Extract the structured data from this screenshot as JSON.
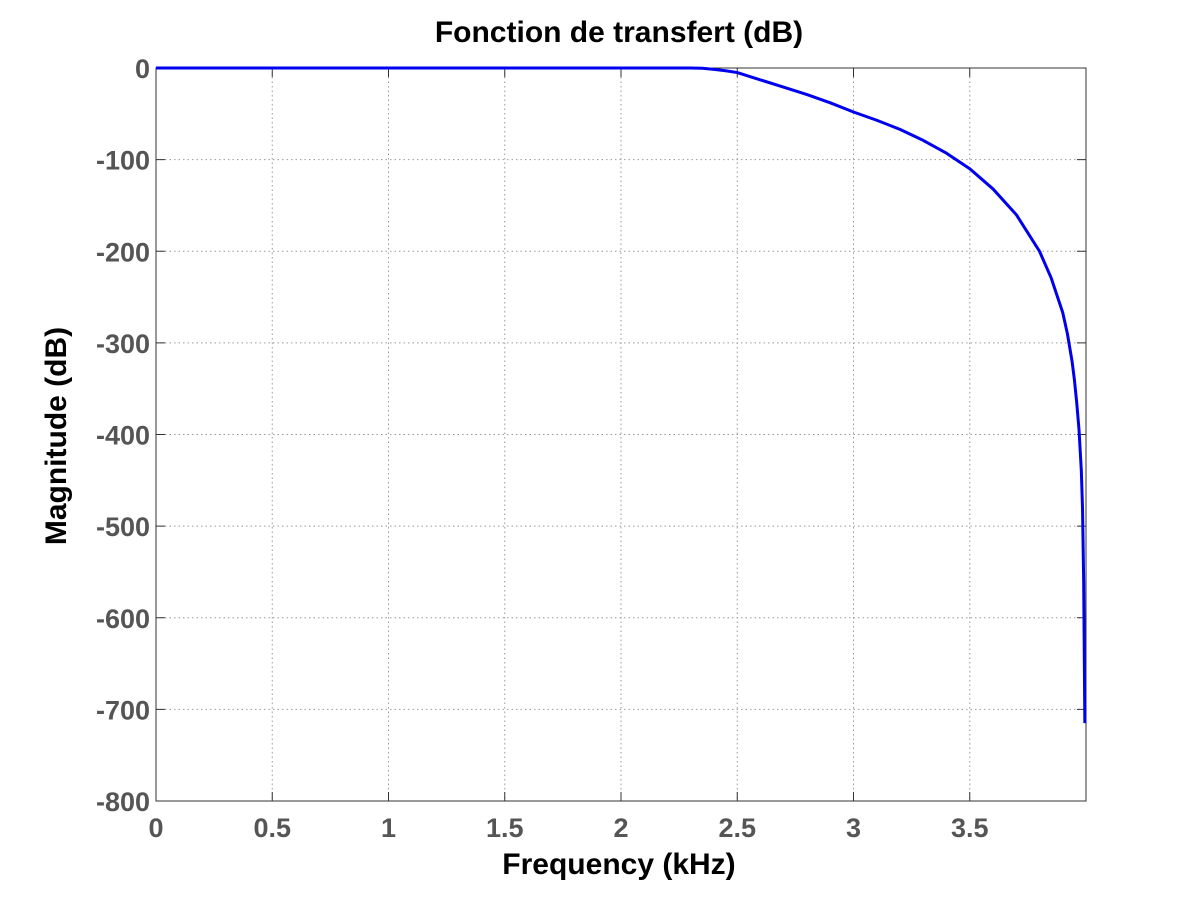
{
  "chart_data": {
    "type": "line",
    "title": "Fonction de transfert (dB)",
    "xlabel": "Frequency (kHz)",
    "ylabel": "Magnitude (dB)",
    "xlim": [
      0,
      4
    ],
    "ylim": [
      -800,
      0
    ],
    "xticks": [
      0,
      0.5,
      1,
      1.5,
      2,
      2.5,
      3,
      3.5
    ],
    "xtick_labels": [
      "0",
      "0.5",
      "1",
      "1.5",
      "2",
      "2.5",
      "3",
      "3.5"
    ],
    "yticks": [
      0,
      -100,
      -200,
      -300,
      -400,
      -500,
      -600,
      -700,
      -800
    ],
    "ytick_labels": [
      "0",
      "-100",
      "-200",
      "-300",
      "-400",
      "-500",
      "-600",
      "-700",
      "-800"
    ],
    "grid": true,
    "series": [
      {
        "color": "#0000ee",
        "x": [
          0,
          0.5,
          1.0,
          1.5,
          2.0,
          2.2,
          2.3,
          2.35,
          2.4,
          2.45,
          2.5,
          2.6,
          2.7,
          2.8,
          2.9,
          3.0,
          3.1,
          3.2,
          3.3,
          3.4,
          3.5,
          3.6,
          3.7,
          3.8,
          3.85,
          3.9,
          3.92,
          3.94,
          3.95,
          3.96,
          3.97,
          3.98,
          3.985,
          3.99,
          3.995
        ],
        "y": [
          0,
          0,
          0,
          0,
          0,
          0,
          0,
          -0.3,
          -1.5,
          -3,
          -5,
          -13,
          -21,
          -29,
          -38,
          -48,
          -57,
          -67,
          -79,
          -93,
          -110,
          -132,
          -160,
          -200,
          -229,
          -267,
          -290,
          -320,
          -340,
          -365,
          -395,
          -440,
          -480,
          -560,
          -715
        ]
      }
    ]
  }
}
